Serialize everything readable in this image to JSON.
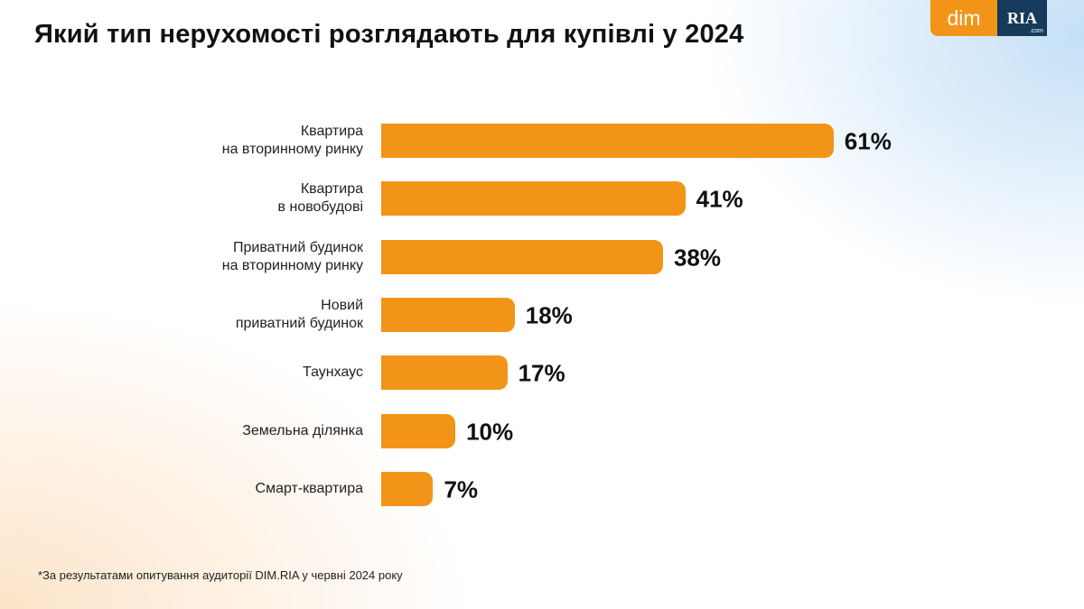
{
  "logo": {
    "dim": "dim",
    "ria": "RIA",
    "com": ".com",
    "dim_color": "#f39419",
    "ria_color": "#163a5c"
  },
  "chart_data": {
    "type": "bar",
    "orientation": "horizontal",
    "title": "Який тип нерухомості розглядають для купівлі у 2024",
    "categories": [
      [
        "Квартира",
        "на вторинному ринку"
      ],
      [
        "Квартира",
        "в новобудові"
      ],
      [
        "Приватний будинок",
        "на вторинному ринку"
      ],
      [
        "Новий",
        "приватний будинок"
      ],
      [
        "Таунхаус"
      ],
      [
        "Земельна ділянка"
      ],
      [
        "Смарт-квартира"
      ]
    ],
    "values": [
      61,
      41,
      38,
      18,
      17,
      10,
      7
    ],
    "value_labels": [
      "61%",
      "41%",
      "38%",
      "18%",
      "17%",
      "10%",
      "7%"
    ],
    "unit": "%",
    "bar_color": "#f29418",
    "grid": false
  },
  "footnote": "*За результатами опитування аудиторії DIM.RIA у червні 2024 року"
}
